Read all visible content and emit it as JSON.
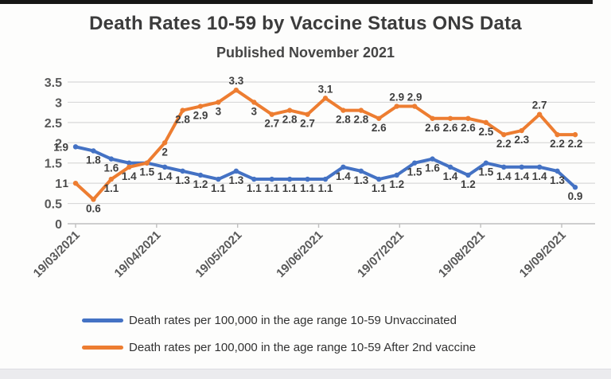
{
  "page": {
    "title": "Death Rates 10-59  by Vaccine Status ONS Data",
    "subtitle": "Published November 2021"
  },
  "chart_data": {
    "type": "line",
    "title": "Death Rates 10-59  by Vaccine Status ONS Data",
    "subtitle": "Published November 2021",
    "grid": true,
    "legend_position": "bottom",
    "ylim": [
      0,
      3.5
    ],
    "y_tick_labels": [
      "0",
      "0.5",
      "1",
      "1.5",
      "2",
      "2.5",
      "3",
      "3.5"
    ],
    "y_tick_values": [
      0,
      0.5,
      1,
      1.5,
      2,
      2.5,
      3,
      3.5
    ],
    "x_tick_labels": [
      "19/03/2021",
      "19/04/2021",
      "19/05/2021",
      "19/06/2021",
      "19/07/2021",
      "19/08/2021",
      "19/09/2021"
    ],
    "series": [
      {
        "name": "Death rates per 100,000 in the age range 10-59 Unvaccinated",
        "color": "#4472c4",
        "values": [
          1.9,
          1.8,
          1.6,
          1.5,
          1.5,
          1.4,
          1.3,
          1.2,
          1.1,
          1.3,
          1.1,
          1.1,
          1.1,
          1.1,
          1.1,
          1.4,
          1.3,
          1.1,
          1.2,
          1.5,
          1.6,
          1.4,
          1.2,
          1.5,
          1.4,
          1.4,
          1.4,
          1.3,
          0.9
        ],
        "label_skip": [
          3,
          4
        ],
        "label_above": [],
        "label_side_start": true
      },
      {
        "name": "Death rates per 100,000 in the age range 10-59 After 2nd  vaccine",
        "color": "#ed7d31",
        "values": [
          1,
          0.6,
          1.1,
          1.4,
          1.5,
          2,
          2.8,
          2.9,
          3,
          3.3,
          3,
          2.7,
          2.8,
          2.7,
          3.1,
          2.8,
          2.8,
          2.6,
          2.9,
          2.9,
          2.6,
          2.6,
          2.6,
          2.5,
          2.2,
          2.3,
          2.7,
          2.2,
          2.2
        ],
        "label_skip": [],
        "label_above": [
          9,
          14,
          18,
          19,
          26
        ],
        "label_side_start": true
      }
    ],
    "colors": {
      "gridline": "#d9d9d9",
      "axis_line": "#bfbfbf",
      "tick_text": "#595959",
      "data_label": "#3f3f3f"
    }
  },
  "legend": {
    "items": [
      {
        "label": "Death rates per 100,000 in the age range 10-59 Unvaccinated",
        "color": "#4472c4"
      },
      {
        "label": "Death rates per 100,000 in the age range 10-59 After 2nd  vaccine",
        "color": "#ed7d31"
      }
    ]
  }
}
